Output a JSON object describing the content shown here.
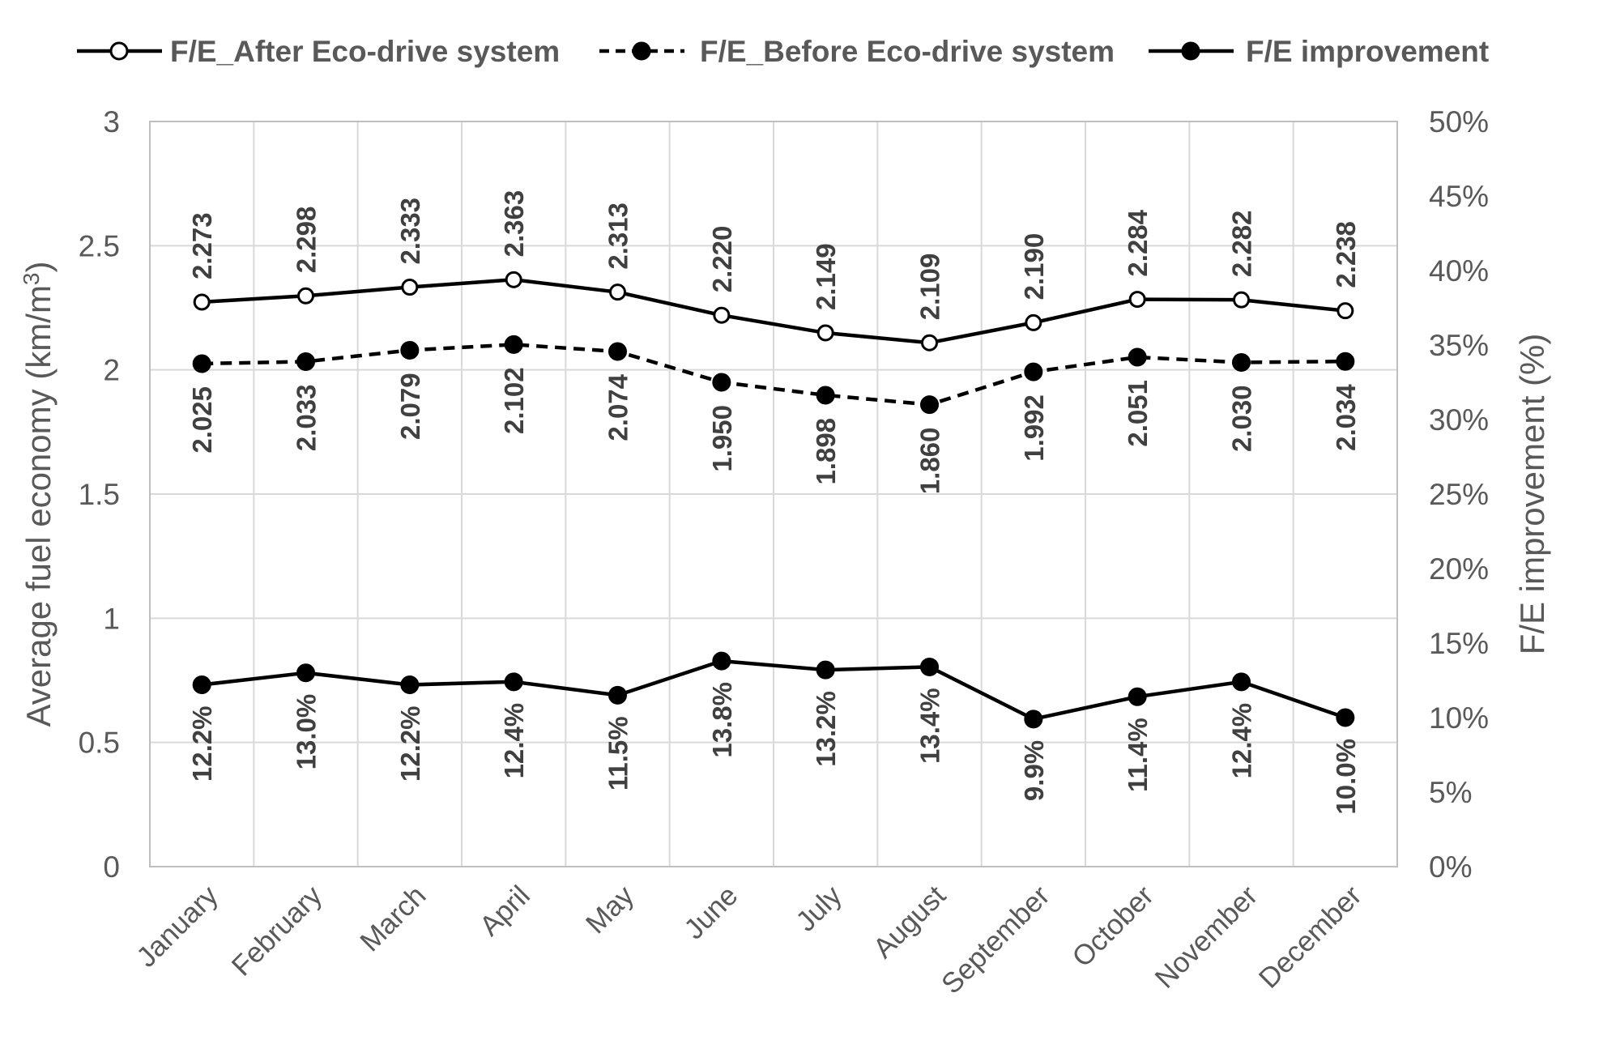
{
  "chart_data": {
    "type": "line",
    "categories": [
      "January",
      "February",
      "March",
      "April",
      "May",
      "June",
      "July",
      "August",
      "September",
      "October",
      "November",
      "December"
    ],
    "series": [
      {
        "name": "F/E_After Eco-drive system",
        "axis": "left",
        "style": "solid-open-marker",
        "values": [
          2.273,
          2.298,
          2.333,
          2.363,
          2.313,
          2.22,
          2.149,
          2.109,
          2.19,
          2.284,
          2.282,
          2.238
        ],
        "labels": [
          "2.273",
          "2.298",
          "2.333",
          "2.363",
          "2.313",
          "2.220",
          "2.149",
          "2.109",
          "2.190",
          "2.284",
          "2.282",
          "2.238"
        ]
      },
      {
        "name": "F/E_Before Eco-drive system",
        "axis": "left",
        "style": "dashed-filled-marker",
        "values": [
          2.025,
          2.033,
          2.079,
          2.102,
          2.074,
          1.95,
          1.898,
          1.86,
          1.992,
          2.051,
          2.03,
          2.034
        ],
        "labels": [
          "2.025",
          "2.033",
          "2.079",
          "2.102",
          "2.074",
          "1.950",
          "1.898",
          "1.860",
          "1.992",
          "2.051",
          "2.030",
          "2.034"
        ]
      },
      {
        "name": "F/E improvement",
        "axis": "right",
        "style": "solid-filled-marker",
        "values": [
          12.2,
          13.0,
          12.2,
          12.4,
          11.5,
          13.8,
          13.2,
          13.4,
          9.9,
          11.4,
          12.4,
          10.0
        ],
        "labels": [
          "12.2%",
          "13.0%",
          "12.2%",
          "12.4%",
          "11.5%",
          "13.8%",
          "13.2%",
          "13.4%",
          "9.9%",
          "11.4%",
          "12.4%",
          "10.0%"
        ]
      }
    ],
    "y_left": {
      "label": "Average fuel economy (km/m",
      "label_sup": "3",
      "label_end": ")",
      "min": 0,
      "max": 3,
      "ticks": [
        0,
        0.5,
        1,
        1.5,
        2,
        2.5,
        3
      ],
      "tick_labels": [
        "0",
        "0.5",
        "1",
        "1.5",
        "2",
        "2.5",
        "3"
      ]
    },
    "y_right": {
      "label": "F/E improvement (%)",
      "min": 0,
      "max": 50,
      "ticks": [
        0,
        5,
        10,
        15,
        20,
        25,
        30,
        35,
        40,
        45,
        50
      ],
      "tick_labels": [
        "0%",
        "5%",
        "10%",
        "15%",
        "20%",
        "25%",
        "30%",
        "35%",
        "40%",
        "45%",
        "50%"
      ]
    },
    "grid": true,
    "legend_position": "top",
    "colors": {
      "line": "#000000",
      "grid": "#d9d9d9",
      "text": "#595959",
      "label": "#404040"
    }
  }
}
